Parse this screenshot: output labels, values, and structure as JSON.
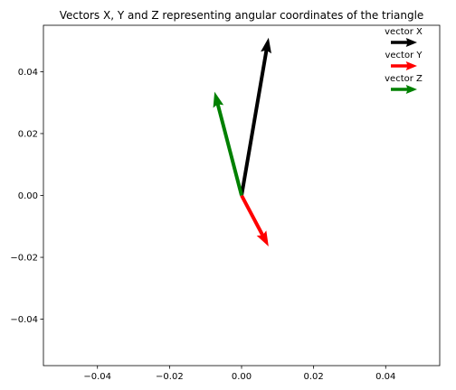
{
  "chart_data": {
    "type": "quiver",
    "title": "Vectors X, Y and Z representing angular coordinates of the triangle",
    "xlabel": "",
    "ylabel": "",
    "xlim": [
      -0.055,
      0.055
    ],
    "ylim": [
      -0.055,
      0.055
    ],
    "xticks": [
      -0.04,
      -0.02,
      0.0,
      0.02,
      0.04
    ],
    "xtick_labels": [
      "−0.04",
      "−0.02",
      "0.00",
      "0.02",
      "0.04"
    ],
    "yticks": [
      -0.04,
      -0.02,
      0.0,
      0.02,
      0.04
    ],
    "ytick_labels": [
      "−0.04",
      "−0.02",
      "0.00",
      "0.02",
      "0.04"
    ],
    "grid": false,
    "legend_position": "upper right",
    "series": [
      {
        "name": "vector X",
        "color": "#000000",
        "origin": [
          0.0,
          0.0
        ],
        "vector": [
          0.0075,
          0.051
        ]
      },
      {
        "name": "vector Y",
        "color": "#ff0000",
        "origin": [
          0.0,
          0.0
        ],
        "vector": [
          0.0075,
          -0.0165
        ]
      },
      {
        "name": "vector Z",
        "color": "#008000",
        "origin": [
          0.0,
          0.0
        ],
        "vector": [
          -0.0075,
          0.0335
        ]
      }
    ]
  }
}
